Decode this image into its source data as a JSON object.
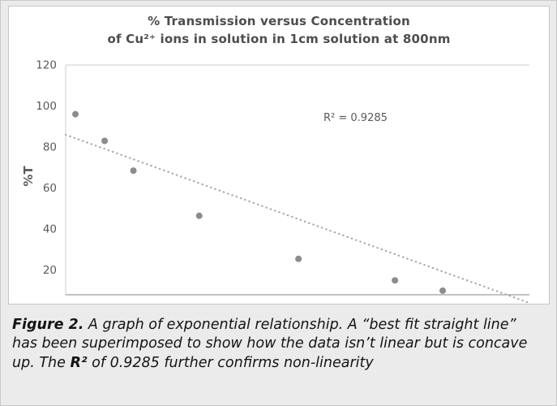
{
  "chart": {
    "title_line1": "% Transmission versus Concentration",
    "title_line2": "of Cu²⁺ ions in solution in 1cm solution at 800nm",
    "y_axis_label": "%T",
    "r_squared_label": "R² = 0.9285"
  },
  "chart_data": {
    "type": "scatter",
    "title": "% Transmission versus Concentration of Cu²⁺ ions in solution in 1cm solution at 800nm",
    "xlabel": "",
    "ylabel": "%T",
    "yticks": [
      20,
      40,
      60,
      80,
      100,
      120
    ],
    "ylim": [
      8,
      120
    ],
    "xlim": [
      0,
      1
    ],
    "grid": "top-line-only",
    "legend": "none",
    "points": [
      {
        "x": 0.021,
        "y": 96
      },
      {
        "x": 0.084,
        "y": 83
      },
      {
        "x": 0.146,
        "y": 68.5
      },
      {
        "x": 0.288,
        "y": 46.5
      },
      {
        "x": 0.502,
        "y": 25.5
      },
      {
        "x": 0.71,
        "y": 15
      },
      {
        "x": 0.813,
        "y": 10
      }
    ],
    "trendline": {
      "style": "dotted",
      "x1": 0,
      "y1": 86,
      "x2": 1,
      "y2": 4
    },
    "annotation": "R² = 0.9285"
  },
  "colors": {
    "point": "#8c8c8c",
    "trendline": "#a8a8a8",
    "gridline": "#cfcfcf",
    "axis_line": "#9e9e9e",
    "axis_text": "#595959",
    "title_text": "#4d4d4d"
  },
  "caption": {
    "figure_label": "Figure 2.",
    "text_part1": " A graph of exponential relationship. A “best fit straight line” has been superimposed to show how the data isn’t linear but is concave up. The ",
    "r_squared": "R²",
    "text_part2": " of 0.9285 further confirms non-linearity"
  }
}
